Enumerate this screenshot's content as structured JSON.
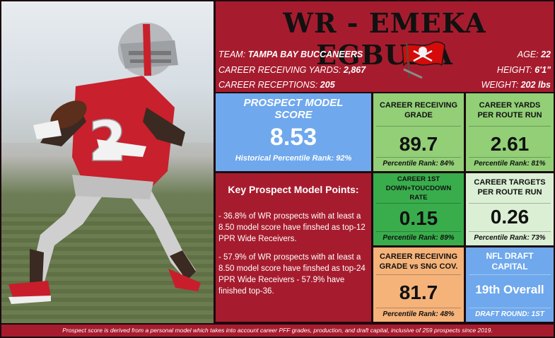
{
  "header": {
    "title": "WR - EMEKA EGBUKA",
    "team_label": "TEAM:",
    "team_value": "TAMPA BAY BUCCANEERS",
    "yards_label": "CAREER RECEIVING YARDS:",
    "yards_value": "2,867",
    "receptions_label": "CAREER RECEPTIONS:",
    "receptions_value": "205",
    "age_label": "AGE:",
    "age_value": "22",
    "height_label": "HEIGHT:",
    "height_value": "6'1\"",
    "weight_label": "WEIGHT:",
    "weight_value": "202 lbs"
  },
  "photo": {
    "jersey_number": "2"
  },
  "prospect": {
    "title_line1": "PROSPECT MODEL",
    "title_line2": "SCORE",
    "score": "8.53",
    "rank": "Historical Percentile Rank: 92%"
  },
  "points": {
    "heading": "Key Prospect Model Points:",
    "bullet1": "- 36.8% of WR prospects with at least a 8.50 model score have finshed as top-12 PPR Wide Receivers.",
    "bullet2": "- 57.9% of WR prospects with at least a 8.50 model score have finshed as top-24 PPR Wide Receivers - 57.9% have finished top-36."
  },
  "tiles": {
    "crg": {
      "title": "CAREER RECEIVING GRADE",
      "value": "89.7",
      "rank": "Percentile Rank: 84%"
    },
    "yprr": {
      "title": "CAREER YARDS PER ROUTE RUN",
      "value": "2.61",
      "rank": "Percentile Rank: 81%"
    },
    "td": {
      "title": "CAREER 1ST DOWN+TOUCDOWN RATE",
      "value": "0.15",
      "rank": "Percentile Rank: 89%"
    },
    "tprr": {
      "title": "CAREER TARGETS PER ROUTE RUN",
      "value": "0.26",
      "rank": "Percentile Rank: 73%"
    },
    "sng": {
      "title": "CAREER RECEIVING GRADE vs SNG COV.",
      "value": "81.7",
      "rank": "Percentile Rank: 48%"
    },
    "draft": {
      "title": "NFL DRAFT CAPITAL",
      "value": "19th Overall",
      "round": "DRAFT ROUND: 1ST"
    }
  },
  "footer": {
    "text": "Prospect score is derived from a personal model which takes into account career PFF grades, production, and draft capital, inclusive of 259 prospects since 2019."
  },
  "colors": {
    "crimson": "#a61c2e",
    "blue": "#6fa8ec",
    "light_green": "#92cf77",
    "green": "#39ad4c",
    "mint": "#dbefd4",
    "peach": "#f5b37a"
  },
  "icons": {
    "logo": "buccaneers-flag-logo"
  }
}
